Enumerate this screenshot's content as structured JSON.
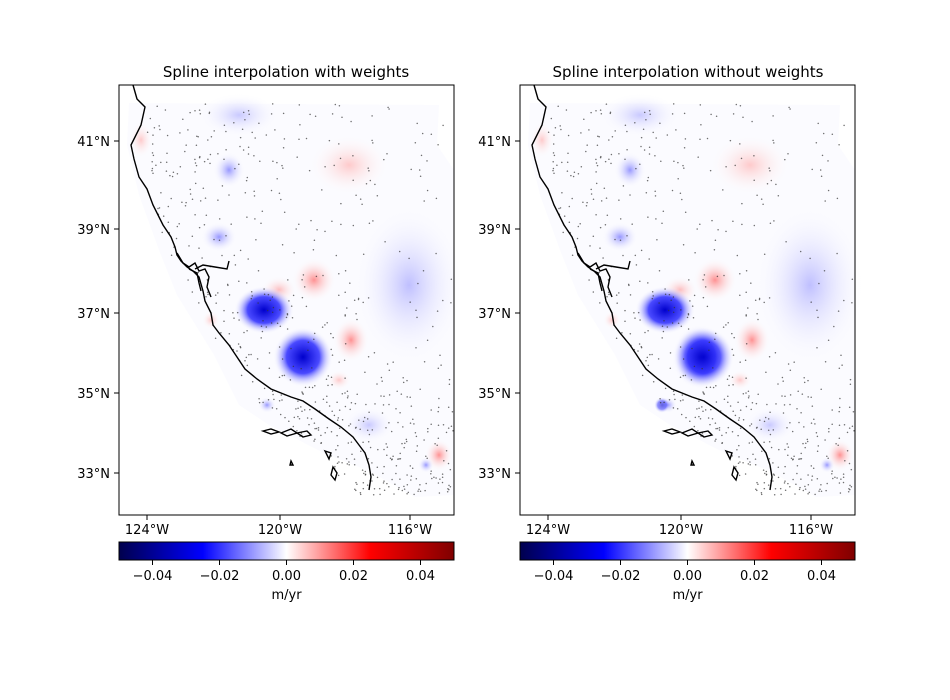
{
  "figure": {
    "panels": [
      {
        "title": "Spline interpolation with weights",
        "x_ticks": [
          "124°W",
          "120°W",
          "116°W"
        ],
        "y_ticks": [
          "41°N",
          "39°N",
          "37°N",
          "35°N",
          "33°N"
        ],
        "colorbar": {
          "ticks": [
            "−0.04",
            "−0.02",
            "0.00",
            "0.02",
            "0.04"
          ],
          "label": "m/yr"
        }
      },
      {
        "title": "Spline interpolation without weights",
        "x_ticks": [
          "124°W",
          "120°W",
          "116°W"
        ],
        "y_ticks": [
          "41°N",
          "39°N",
          "37°N",
          "35°N",
          "33°N"
        ],
        "colorbar": {
          "ticks": [
            "−0.04",
            "−0.02",
            "0.00",
            "0.02",
            "0.04"
          ],
          "label": "m/yr"
        }
      }
    ]
  },
  "colors": {
    "negative": "#0000ff",
    "positive": "#ff0000",
    "dark_negative": "#00004d",
    "dark_positive": "#7f0000",
    "zero": "#ffffff"
  },
  "chart_data": {
    "type": "heatmap",
    "colormap": "seismic",
    "value_range": [
      -0.05,
      0.05
    ],
    "units": "m/yr",
    "lon_ticks": [
      -124,
      -120,
      -116
    ],
    "lat_ticks": [
      41,
      39,
      37,
      35,
      33
    ],
    "panels": [
      "with weights",
      "without weights"
    ]
  }
}
